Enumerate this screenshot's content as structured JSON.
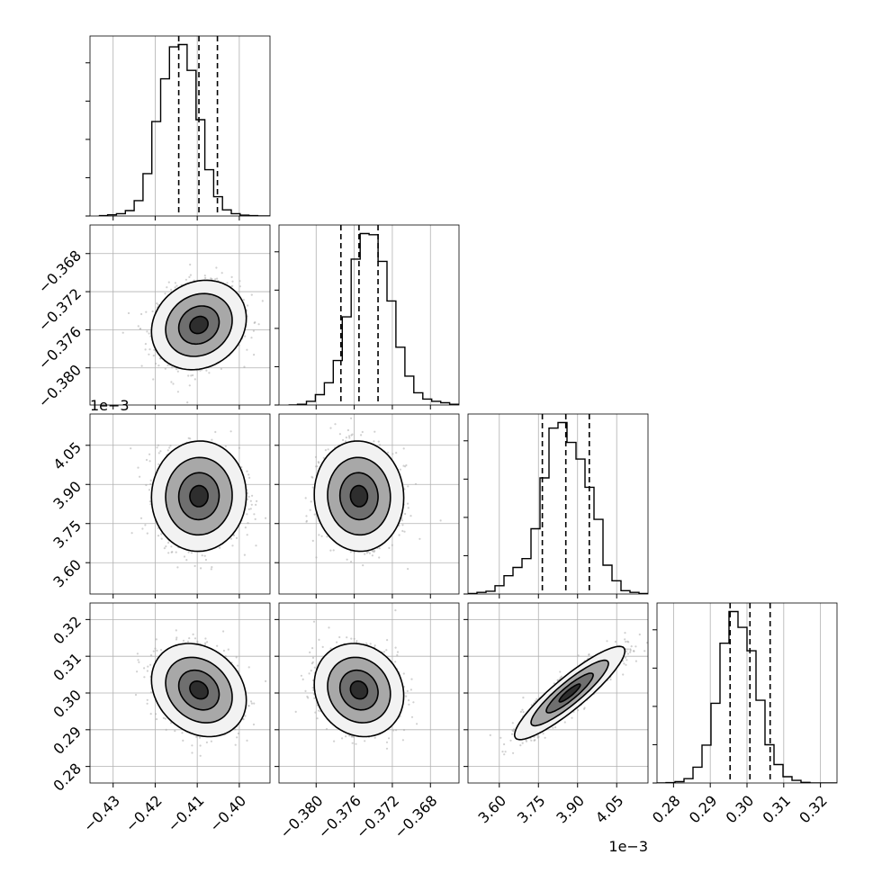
{
  "chart_data": {
    "type": "corner",
    "parameters": [
      {
        "range": [
          -0.4355,
          -0.3927
        ],
        "ticks": [
          -0.43,
          -0.42,
          -0.41,
          -0.4
        ],
        "tick_labels": [
          "−0.43",
          "−0.42",
          "−0.41",
          "−0.40"
        ],
        "quantiles": [
          -0.4144,
          -0.4096,
          -0.4052
        ],
        "hist": {
          "step": 0.0021,
          "start": -0.4334,
          "counts": [
            1,
            3,
            6,
            14,
            40,
            110,
            245,
            356,
            439,
            445,
            378,
            250,
            120,
            50,
            16,
            6,
            2,
            1,
            0,
            0
          ]
        }
      },
      {
        "range": [
          -0.3839,
          -0.365
        ],
        "ticks": [
          -0.38,
          -0.376,
          -0.372,
          -0.368
        ],
        "tick_labels": [
          "−0.380",
          "−0.376",
          "−0.372",
          "−0.368"
        ],
        "quantiles": [
          -0.3774,
          -0.3755,
          -0.3735
        ],
        "hist": {
          "step": 0.00094,
          "start": -0.3829,
          "counts": [
            0,
            2,
            10,
            28,
            60,
            120,
            238,
            394,
            463,
            460,
            388,
            281,
            156,
            78,
            33,
            16,
            10,
            6,
            2,
            0
          ]
        }
      },
      {
        "range": [
          3.48,
          4.17
        ],
        "ticks": [
          3.6,
          3.75,
          3.9,
          4.05
        ],
        "tick_labels": [
          "3.60",
          "3.75",
          "3.90",
          "4.05"
        ],
        "offset_label": "1e−3",
        "quantiles": [
          3.765,
          3.855,
          3.945
        ],
        "hist": {
          "step": 0.0345,
          "start": 3.48,
          "counts": [
            1,
            3,
            5,
            15,
            33,
            48,
            64,
            118,
            210,
            300,
            310,
            274,
            244,
            193,
            135,
            52,
            24,
            6,
            3,
            1
          ]
        }
      },
      {
        "range": [
          0.2755,
          0.3245
        ],
        "ticks": [
          0.28,
          0.29,
          0.3,
          0.31,
          0.32
        ],
        "tick_labels": [
          "0.28",
          "0.29",
          "0.30",
          "0.31",
          "0.32"
        ],
        "quantiles": [
          0.2954,
          0.3008,
          0.3063
        ],
        "hist": {
          "step": 0.00245,
          "start": 0.2755,
          "counts": [
            0,
            1,
            4,
            13,
            48,
            115,
            242,
            424,
            520,
            472,
            401,
            251,
            116,
            56,
            19,
            8,
            2,
            0,
            0,
            0
          ]
        }
      }
    ],
    "pairs": [
      {
        "row": 1,
        "col": 0,
        "center": [
          -0.4096,
          -0.3755
        ],
        "sigma": [
          0.0048,
          0.002
        ],
        "rho": 0.15,
        "contours": [
          0.45,
          1.0,
          1.65,
          2.35
        ]
      },
      {
        "row": 2,
        "col": 0,
        "center": [
          -0.4096,
          3.855
        ],
        "sigma": [
          0.0048,
          0.09
        ],
        "rho": 0.02,
        "contours": [
          0.45,
          1.0,
          1.65,
          2.35
        ]
      },
      {
        "row": 2,
        "col": 1,
        "center": [
          -0.3755,
          3.855
        ],
        "sigma": [
          0.002,
          0.09
        ],
        "rho": -0.03,
        "contours": [
          0.45,
          1.0,
          1.65,
          2.35
        ]
      },
      {
        "row": 3,
        "col": 0,
        "center": [
          -0.4096,
          0.3008
        ],
        "sigma": [
          0.0048,
          0.0054
        ],
        "rho": -0.22,
        "contours": [
          0.45,
          1.0,
          1.65,
          2.35
        ]
      },
      {
        "row": 3,
        "col": 1,
        "center": [
          -0.3755,
          0.3008
        ],
        "sigma": [
          0.002,
          0.0054
        ],
        "rho": -0.12,
        "contours": [
          0.45,
          1.0,
          1.65,
          2.35
        ]
      },
      {
        "row": 3,
        "col": 2,
        "center": [
          3.87,
          0.3
        ],
        "sigma": [
          0.09,
          0.0054
        ],
        "rho": 0.9,
        "contours": [
          0.45,
          1.0,
          1.65,
          2.35
        ]
      }
    ],
    "grid": true
  }
}
